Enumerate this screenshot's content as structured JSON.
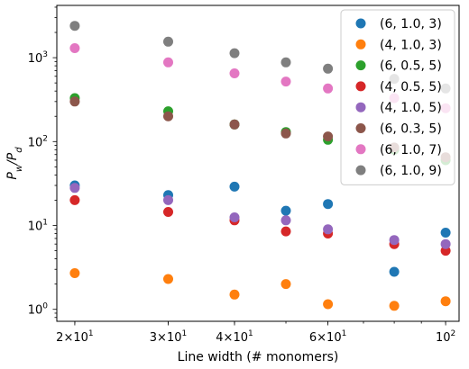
{
  "chart_data": {
    "type": "scatter",
    "title": "",
    "xlabel": "Line width (# monomers)",
    "ylabel_main": "P",
    "ylabel_sub1": "w",
    "ylabel_slash": "/P",
    "ylabel_sub2": "d",
    "x_scale": "log",
    "y_scale": "log",
    "xlim": [
      18.5,
      106
    ],
    "ylim": [
      0.72,
      4200
    ],
    "grid": false,
    "legend_position": "top-right",
    "x_ticks": [
      {
        "value": 20,
        "base": "2",
        "times": "×",
        "exp_base": "10",
        "exp": "1"
      },
      {
        "value": 30,
        "base": "3",
        "times": "×",
        "exp_base": "10",
        "exp": "1"
      },
      {
        "value": 40,
        "base": "4",
        "times": "×",
        "exp_base": "10",
        "exp": "1"
      },
      {
        "value": 60,
        "base": "6",
        "times": "×",
        "exp_base": "10",
        "exp": "1"
      },
      {
        "value": 100,
        "base": "",
        "times": "",
        "exp_base": "10",
        "exp": "2"
      }
    ],
    "y_ticks": [
      {
        "value": 1,
        "exp_base": "10",
        "exp": "0"
      },
      {
        "value": 10,
        "exp_base": "10",
        "exp": "1"
      },
      {
        "value": 100,
        "exp_base": "10",
        "exp": "2"
      },
      {
        "value": 1000,
        "exp_base": "10",
        "exp": "3"
      }
    ],
    "x": [
      20,
      30,
      40,
      50,
      60,
      80,
      100
    ],
    "series": [
      {
        "name": "(6, 1.0, 3)",
        "color": "#1f77b4",
        "values": [
          30,
          23,
          29,
          15,
          18,
          2.8,
          8.2
        ]
      },
      {
        "name": "(4, 1.0, 3)",
        "color": "#ff7f0e",
        "values": [
          2.7,
          2.3,
          1.5,
          2.0,
          1.15,
          1.1,
          1.25
        ]
      },
      {
        "name": "(6, 0.5, 5)",
        "color": "#2ca02c",
        "values": [
          330,
          230,
          160,
          130,
          105,
          80,
          60
        ]
      },
      {
        "name": "(4, 0.5, 5)",
        "color": "#d62728",
        "values": [
          20,
          14.5,
          11.5,
          8.5,
          8,
          6,
          5
        ]
      },
      {
        "name": "(4, 1.0, 5)",
        "color": "#9467bd",
        "values": [
          28,
          20,
          12.5,
          11.5,
          9,
          6.7,
          6
        ]
      },
      {
        "name": "(6, 0.3, 5)",
        "color": "#8c564b",
        "values": [
          300,
          200,
          160,
          125,
          115,
          85,
          65
        ]
      },
      {
        "name": "(6, 1.0, 7)",
        "color": "#e377c2",
        "values": [
          1300,
          880,
          650,
          520,
          430,
          330,
          250
        ]
      },
      {
        "name": "(6, 1.0, 9)",
        "color": "#7f7f7f",
        "values": [
          2400,
          1550,
          1130,
          880,
          740,
          560,
          430
        ]
      }
    ]
  }
}
